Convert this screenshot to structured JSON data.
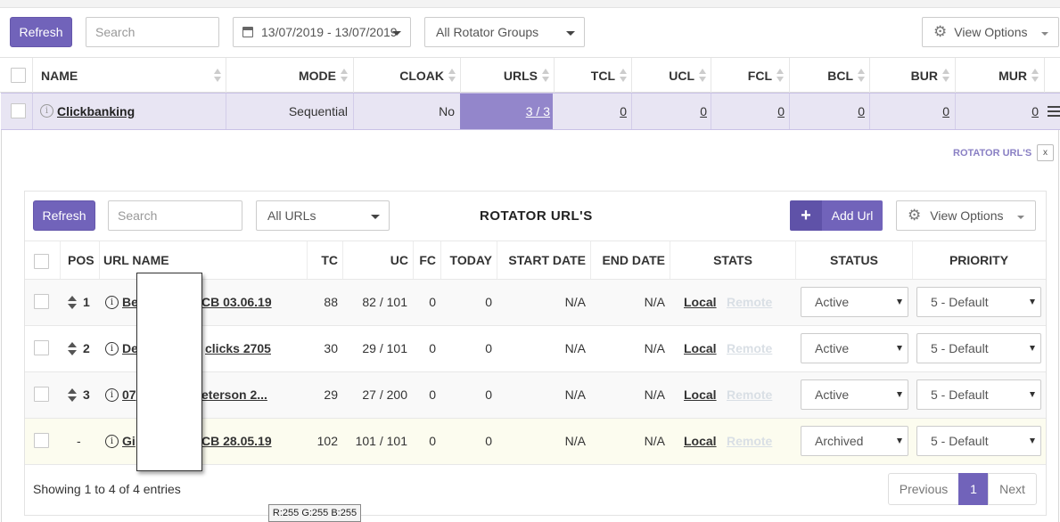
{
  "toolbar": {
    "refresh_label": "Refresh",
    "search_placeholder": "Search",
    "date_range": "13/07/2019 - 13/07/2019",
    "group_select": "All Rotator Groups",
    "view_options": "View Options"
  },
  "main_table": {
    "headers": [
      "NAME",
      "MODE",
      "CLOAK",
      "URLS",
      "TCL",
      "UCL",
      "FCL",
      "BCL",
      "BUR",
      "MUR"
    ],
    "row": {
      "name": "Clickbanking",
      "mode": "Sequential",
      "cloak": "No",
      "urls": "3 / 3",
      "tcl": "0",
      "ucl": "0",
      "fcl": "0",
      "bcl": "0",
      "bur": "0",
      "mur": "0"
    }
  },
  "rotator_panel": {
    "tag": "ROTATOR URL'S",
    "close": "x",
    "title": "ROTATOR URL'S",
    "refresh_label": "Refresh",
    "search_placeholder": "Search",
    "filter_select": "All URLs",
    "add_url_label": "Add Url",
    "add_icon": "+",
    "view_options": "View Options",
    "headers": [
      "POS",
      "URL NAME",
      "TC",
      "UC",
      "FC",
      "TODAY",
      "START DATE",
      "END DATE",
      "STATS",
      "STATUS",
      "PRIORITY"
    ],
    "rows": [
      {
        "pos": "1",
        "name_a": "Be",
        "name_b": "CB 03.06.19",
        "tc": "88",
        "uc": "82 / 101",
        "fc": "0",
        "today": "0",
        "start": "N/A",
        "end": "N/A",
        "local": "Local",
        "remote": "Remote",
        "status": "Active",
        "priority": "5 - Default"
      },
      {
        "pos": "2",
        "name_a": "De",
        "name_b": "clicks 2705",
        "tc": "30",
        "uc": "29 / 101",
        "fc": "0",
        "today": "0",
        "start": "N/A",
        "end": "N/A",
        "local": "Local",
        "remote": "Remote",
        "status": "Active",
        "priority": "5 - Default"
      },
      {
        "pos": "3",
        "name_a": "07",
        "name_b": "eterson 2...",
        "tc": "29",
        "uc": "27 / 200",
        "fc": "0",
        "today": "0",
        "start": "N/A",
        "end": "N/A",
        "local": "Local",
        "remote": "Remote",
        "status": "Active",
        "priority": "5 - Default"
      },
      {
        "pos": "-",
        "name_a": "Gi",
        "name_b": "CB 28.05.19",
        "tc": "102",
        "uc": "101 / 101",
        "fc": "0",
        "today": "0",
        "start": "N/A",
        "end": "N/A",
        "local": "Local",
        "remote": "Remote",
        "status": "Archived",
        "priority": "5 - Default"
      }
    ],
    "footer_info": "Showing 1 to 4 of 4 entries",
    "pagination": {
      "previous": "Previous",
      "current": "1",
      "next": "Next"
    }
  },
  "tooltip": "R:255 G:255 B:255",
  "colors": {
    "accent": "#7163ba",
    "row_highlight": "#e8e5f3",
    "urls_cell": "#9386cb",
    "archived_row": "#fcfcef"
  }
}
